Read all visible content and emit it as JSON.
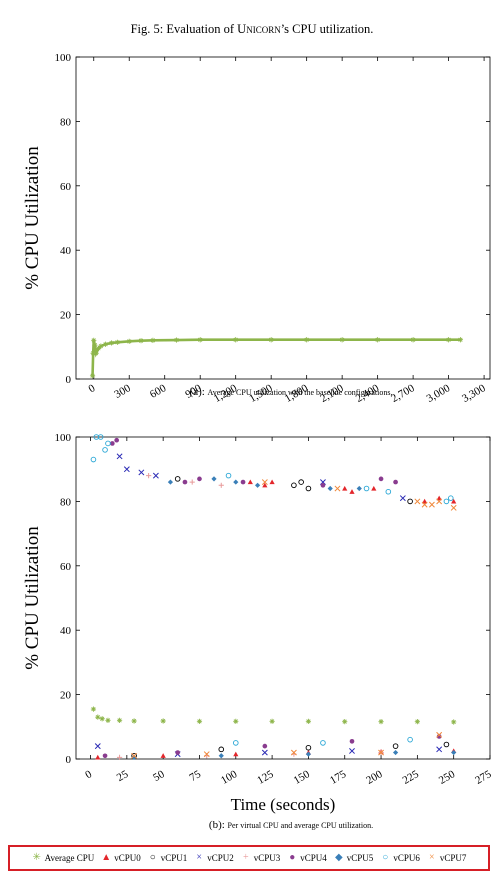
{
  "figure": {
    "title_prefix": "Fig. 5: Evaluation of ",
    "title_brand": "Unicorn",
    "title_suffix": "’s CPU utilization."
  },
  "chart_data": [
    {
      "type": "scatter",
      "ylabel": "% CPU Utilization",
      "xlabel": "",
      "caption_tag": "(a):",
      "caption": "Average CPU utilization with the baseline configurations.",
      "xlim": [
        -150,
        3350
      ],
      "ylim": [
        0,
        100
      ],
      "xticks": [
        0,
        300,
        600,
        900,
        1200,
        1500,
        1800,
        2100,
        2400,
        2700,
        3000,
        3300
      ],
      "xtick_labels": [
        "0",
        "300",
        "600",
        "900",
        "1,200",
        "1,500",
        "1,800",
        "2,100",
        "2,400",
        "2,700",
        "3,000",
        "3,300"
      ],
      "yticks": [
        0,
        20,
        40,
        60,
        80,
        100
      ],
      "series": [
        {
          "name": "Average CPU",
          "color": "#8db54a",
          "marker": "star",
          "x": [
            -10,
            -5,
            0,
            10,
            20,
            40,
            60,
            100,
            150,
            200,
            300,
            400,
            500,
            700,
            900,
            1200,
            1500,
            1800,
            2100,
            2400,
            2700,
            3000,
            3100
          ],
          "y": [
            1,
            8,
            12,
            10.5,
            8,
            9.5,
            10.2,
            10.8,
            11.2,
            11.4,
            11.7,
            11.9,
            12,
            12.1,
            12.2,
            12.2,
            12.2,
            12.2,
            12.2,
            12.2,
            12.2,
            12.2,
            12.2
          ]
        }
      ]
    },
    {
      "type": "scatter",
      "ylabel": "% CPU Utilization",
      "xlabel": "Time (seconds)",
      "caption_tag": "(b):",
      "caption": "Per virtual CPU and average CPU utilization.",
      "xlim": [
        -10,
        275
      ],
      "ylim": [
        0,
        100
      ],
      "xticks": [
        0,
        25,
        50,
        75,
        100,
        125,
        150,
        175,
        200,
        225,
        250,
        275
      ],
      "xtick_labels": [
        "0",
        "25",
        "50",
        "75",
        "100",
        "125",
        "150",
        "175",
        "200",
        "225",
        "250",
        "275"
      ],
      "yticks": [
        0,
        20,
        40,
        60,
        80,
        100
      ],
      "series": [
        {
          "name": "Average CPU",
          "color": "#8db54a",
          "marker": "star",
          "x": [
            2,
            5,
            8,
            12,
            20,
            30,
            50,
            75,
            100,
            125,
            150,
            175,
            200,
            225,
            250
          ],
          "y": [
            15.5,
            13,
            12.5,
            12,
            12,
            11.8,
            11.8,
            11.7,
            11.7,
            11.7,
            11.7,
            11.6,
            11.6,
            11.6,
            11.5
          ]
        },
        {
          "name": "vCPU0",
          "color": "#e3262b",
          "marker": "triangle",
          "x": [
            110,
            120,
            125,
            175,
            180,
            195,
            230,
            240,
            250,
            5,
            50,
            100,
            150,
            200,
            250
          ],
          "y": [
            86,
            85,
            86,
            84,
            83,
            84,
            80,
            81,
            80,
            0.5,
            1,
            1.5,
            2,
            2.3,
            2.5
          ]
        },
        {
          "name": "vCPU1",
          "color": "#000000",
          "marker": "circle",
          "x": [
            60,
            140,
            145,
            150,
            220,
            30,
            90,
            150,
            210,
            245
          ],
          "y": [
            87,
            85,
            86,
            84,
            80,
            1,
            3,
            3.5,
            4,
            4.5
          ]
        },
        {
          "name": "vCPU2",
          "color": "#2b2bb5",
          "marker": "cross",
          "x": [
            20,
            25,
            35,
            45,
            160,
            215,
            5,
            60,
            120,
            180,
            240
          ],
          "y": [
            94,
            90,
            89,
            88,
            86,
            81,
            4,
            1.5,
            2,
            2.5,
            3
          ]
        },
        {
          "name": "vCPU3",
          "color": "#e89a9a",
          "marker": "plus",
          "x": [
            40,
            70,
            90,
            20,
            80,
            140,
            200
          ],
          "y": [
            88,
            86,
            85,
            0.5,
            1,
            1.5,
            2
          ]
        },
        {
          "name": "vCPU4",
          "color": "#8a3c8f",
          "marker": "circle-filled",
          "x": [
            15,
            18,
            65,
            75,
            105,
            160,
            200,
            210,
            10,
            60,
            120,
            180,
            240
          ],
          "y": [
            98,
            99,
            86,
            87,
            86,
            85,
            87,
            86,
            1,
            2,
            4,
            5.5,
            7
          ]
        },
        {
          "name": "vCPU5",
          "color": "#3a7fb8",
          "marker": "diamond",
          "x": [
            55,
            85,
            100,
            115,
            165,
            185,
            30,
            90,
            150,
            210,
            250
          ],
          "y": [
            86,
            87,
            86,
            85,
            84,
            84,
            0.5,
            1,
            1.5,
            2,
            2
          ]
        },
        {
          "name": "vCPU6",
          "color": "#2aa7d6",
          "marker": "circle",
          "x": [
            2,
            4,
            7,
            10,
            12,
            95,
            190,
            205,
            245,
            248,
            100,
            160,
            220
          ],
          "y": [
            93,
            100,
            100,
            96,
            98,
            88,
            84,
            83,
            80,
            81,
            5,
            5,
            6
          ]
        },
        {
          "name": "vCPU7",
          "color": "#f0883a",
          "marker": "cross",
          "x": [
            120,
            170,
            225,
            230,
            235,
            240,
            250,
            30,
            80,
            140,
            200,
            240
          ],
          "y": [
            86,
            84,
            80,
            79,
            79,
            80,
            78,
            1,
            1.5,
            2,
            2,
            7.5
          ]
        }
      ]
    }
  ],
  "legend": {
    "items": [
      {
        "label": "Average CPU",
        "glyph": "✳",
        "color": "#8db54a"
      },
      {
        "label": "vCPU0",
        "glyph": "▲",
        "color": "#e3262b"
      },
      {
        "label": "vCPU1",
        "glyph": "○",
        "color": "#000000"
      },
      {
        "label": "vCPU2",
        "glyph": "×",
        "color": "#2b2bb5"
      },
      {
        "label": "vCPU3",
        "glyph": "+",
        "color": "#e89a9a"
      },
      {
        "label": "vCPU4",
        "glyph": "●",
        "color": "#8a3c8f"
      },
      {
        "label": "vCPU5",
        "glyph": "◆",
        "color": "#3a7fb8"
      },
      {
        "label": "vCPU6",
        "glyph": "○",
        "color": "#2aa7d6"
      },
      {
        "label": "vCPU7",
        "glyph": "×",
        "color": "#f0883a"
      }
    ]
  }
}
